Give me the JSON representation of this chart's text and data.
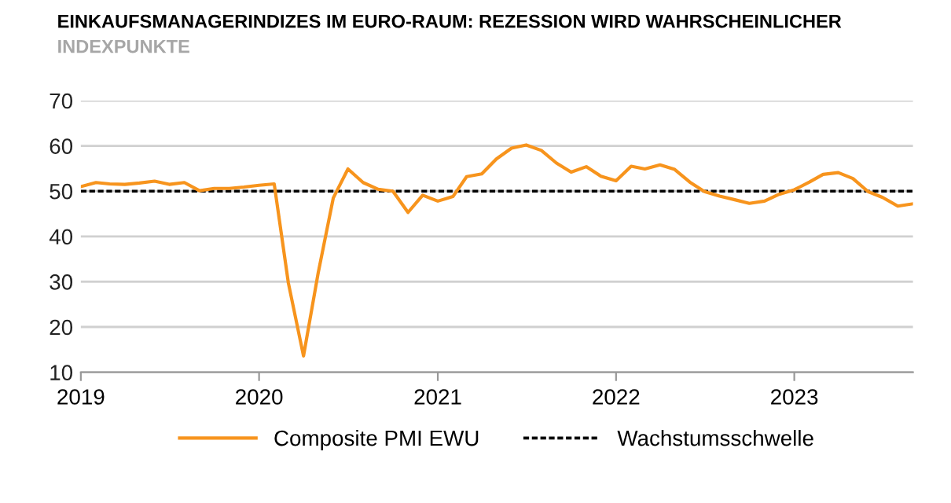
{
  "chart_data": {
    "type": "line",
    "title": "EINKAUFSMANAGERINDIZES IM EURO-RAUM: REZESSION WIRD WAHRSCHEINLICHER",
    "subtitle": "INDEXPUNKTE",
    "x": [
      "2019-01",
      "2019-02",
      "2019-03",
      "2019-04",
      "2019-05",
      "2019-06",
      "2019-07",
      "2019-08",
      "2019-09",
      "2019-10",
      "2019-11",
      "2019-12",
      "2020-01",
      "2020-02",
      "2020-03",
      "2020-04",
      "2020-05",
      "2020-06",
      "2020-07",
      "2020-08",
      "2020-09",
      "2020-10",
      "2020-11",
      "2020-12",
      "2021-01",
      "2021-02",
      "2021-03",
      "2021-04",
      "2021-05",
      "2021-06",
      "2021-07",
      "2021-08",
      "2021-09",
      "2021-10",
      "2021-11",
      "2021-12",
      "2022-01",
      "2022-02",
      "2022-03",
      "2022-04",
      "2022-05",
      "2022-06",
      "2022-07",
      "2022-08",
      "2022-09",
      "2022-10",
      "2022-11",
      "2022-12",
      "2023-01",
      "2023-02",
      "2023-03",
      "2023-04",
      "2023-05",
      "2023-06",
      "2023-07",
      "2023-08",
      "2023-09"
    ],
    "series": [
      {
        "name": "Composite PMI EWU",
        "color": "#f7941d",
        "values": [
          51.0,
          51.9,
          51.6,
          51.5,
          51.8,
          52.2,
          51.5,
          51.9,
          50.1,
          50.6,
          50.6,
          50.9,
          51.3,
          51.6,
          29.7,
          13.6,
          31.9,
          48.5,
          54.9,
          51.9,
          50.4,
          50.0,
          45.3,
          49.1,
          47.8,
          48.8,
          53.2,
          53.8,
          57.1,
          59.5,
          60.2,
          59.0,
          56.2,
          54.2,
          55.4,
          53.3,
          52.3,
          55.5,
          54.9,
          55.8,
          54.8,
          52.0,
          49.9,
          48.9,
          48.1,
          47.3,
          47.8,
          49.3,
          50.3,
          52.0,
          53.7,
          54.1,
          52.8,
          49.9,
          48.6,
          46.7,
          47.2
        ]
      }
    ],
    "ref_lines": [
      {
        "axis": "y",
        "value": 50,
        "label": "Wachstumsschwelle",
        "color": "#000000",
        "line_style": "dashed"
      }
    ],
    "xlim": [
      "2019-01",
      "2023-09"
    ],
    "xticks": [
      {
        "value": "2019-01",
        "label": "2019"
      },
      {
        "value": "2020-01",
        "label": "2020"
      },
      {
        "value": "2021-01",
        "label": "2021"
      },
      {
        "value": "2022-01",
        "label": "2022"
      },
      {
        "value": "2023-01",
        "label": "2023"
      }
    ],
    "ylim": [
      10,
      70
    ],
    "yticks": [
      10,
      20,
      30,
      40,
      50,
      60,
      70
    ],
    "grid": "y",
    "legend": "bottom",
    "marker": "none",
    "line_style": "solid"
  }
}
